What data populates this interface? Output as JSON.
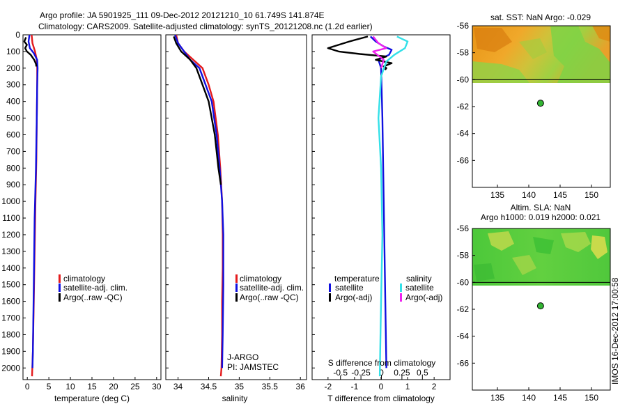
{
  "header": {
    "title_line1": "Argo profile: JA 5901925_111 09-Dec-2012 20121210_10 61.749S 141.874E",
    "title_line2": "Climatology: CARS2009. Satellite-adjusted climatology: synTS_20121208.nc (1.2d earlier)"
  },
  "side_credit": "IMOS 16-Dec-2012 17:00:58",
  "colors": {
    "climatology": "#e41a1c",
    "satellite": "#1010e0",
    "argo": "#000000",
    "satellite_salinity": "#33e0e8",
    "argo_salinity": "#ee22ee"
  },
  "chart_data": [
    {
      "type": "line",
      "name": "temperature profile",
      "xlabel": "temperature (deg C)",
      "ylabel": "",
      "xlim": [
        -1,
        31
      ],
      "ylim": [
        2070,
        0
      ],
      "xticks": [
        0,
        5,
        10,
        15,
        20,
        25,
        30
      ],
      "yticks": [
        0,
        100,
        200,
        300,
        400,
        500,
        600,
        700,
        800,
        900,
        1000,
        1100,
        1200,
        1300,
        1400,
        1500,
        1600,
        1700,
        1800,
        1900,
        2000
      ],
      "legend": [
        "climatology",
        "satellite-adj. clim.",
        "Argo(..raw -QC)"
      ],
      "annotations": [],
      "series": [
        {
          "name": "climatology",
          "color": "#e41a1c",
          "x": [
            1.0,
            1.2,
            1.8,
            2.2,
            2.3,
            2.3,
            2.2,
            2.1,
            1.9,
            1.7,
            1.5,
            1.3,
            1.1
          ],
          "y": [
            0,
            50,
            100,
            150,
            200,
            300,
            500,
            750,
            1000,
            1300,
            1600,
            1900,
            2050
          ]
        },
        {
          "name": "satellite-adj. clim.",
          "color": "#1010e0",
          "x": [
            0.5,
            0.3,
            0.6,
            1.5,
            2.3,
            2.4,
            2.3,
            2.2,
            2.0,
            1.7,
            1.5,
            1.3,
            1.2
          ],
          "y": [
            0,
            40,
            80,
            110,
            150,
            200,
            300,
            500,
            800,
            1100,
            1500,
            1900,
            2000
          ]
        },
        {
          "name": "Argo(..raw -QC)",
          "color": "#000000",
          "x": [
            -0.3,
            -0.7,
            -0.1,
            -0.5,
            -0.1,
            0.8,
            1.6,
            2.0,
            2.1
          ],
          "y": [
            15,
            40,
            60,
            80,
            100,
            120,
            150,
            175,
            190
          ]
        }
      ]
    },
    {
      "type": "line",
      "name": "salinity profile",
      "xlabel": "salinity",
      "ylabel": "",
      "xlim": [
        33.8,
        36.1
      ],
      "ylim": [
        2070,
        0
      ],
      "xticks": [
        34,
        34.5,
        35,
        35.5,
        36
      ],
      "legend": [
        "climatology",
        "satellite-adj. clim.",
        "Argo(..raw -QC)"
      ],
      "annotations": [
        "J-ARGO",
        "PI: JAMSTEC"
      ],
      "series": [
        {
          "name": "climatology",
          "color": "#e41a1c",
          "x": [
            33.97,
            34.0,
            34.1,
            34.25,
            34.4,
            34.5,
            34.58,
            34.65,
            34.69,
            34.72,
            34.73,
            34.73,
            34.72,
            34.72,
            34.71,
            34.7
          ],
          "y": [
            0,
            50,
            100,
            150,
            200,
            300,
            400,
            600,
            800,
            1000,
            1200,
            1400,
            1600,
            1800,
            2000,
            2050
          ]
        },
        {
          "name": "satellite-adj. clim.",
          "color": "#1010e0",
          "x": [
            33.95,
            34.0,
            34.1,
            34.2,
            34.35,
            34.45,
            34.55,
            34.63,
            34.68,
            34.72,
            34.74,
            34.74,
            34.73,
            34.72
          ],
          "y": [
            0,
            50,
            100,
            150,
            200,
            300,
            400,
            600,
            800,
            1000,
            1200,
            1500,
            1800,
            2000
          ]
        },
        {
          "name": "Argo(..raw -QC)",
          "color": "#000000",
          "x": [
            33.93,
            33.97,
            34.05,
            34.2,
            34.3,
            34.4,
            34.5,
            34.6,
            34.66,
            34.7
          ],
          "y": [
            10,
            50,
            100,
            150,
            200,
            300,
            400,
            600,
            800,
            900
          ]
        }
      ]
    },
    {
      "type": "line",
      "name": "difference from climatology",
      "xlabel": "T difference from climatology",
      "xlabel_top": "S difference from climatology",
      "xlim": [
        -2.6,
        2.6
      ],
      "ylim": [
        2070,
        0
      ],
      "xticks": [
        -2,
        -1,
        0,
        1,
        2
      ],
      "xticks_s": [
        -0.5,
        -0.25,
        0,
        0.25,
        0.5
      ],
      "legend_title_t": "temperature",
      "legend_title_s": "salinity",
      "legend_t": [
        "satellite",
        "Argo(-adj)"
      ],
      "legend_s": [
        "satellite",
        "Argo(-adj)"
      ],
      "series": [
        {
          "name": "temperature satellite",
          "color": "#1010e0",
          "x": [
            -0.4,
            -0.2,
            0.1,
            0.4,
            0.3,
            -0.1,
            0.0,
            0.05,
            0.1,
            0.15,
            0.2
          ],
          "y": [
            10,
            40,
            70,
            90,
            120,
            150,
            200,
            500,
            1000,
            1500,
            2000
          ]
        },
        {
          "name": "temperature Argo(-adj)",
          "color": "#000000",
          "x": [
            -0.5,
            -1.2,
            -2.0,
            -1.6,
            -0.8,
            0.2,
            -0.2,
            0.4,
            0.1,
            0.2,
            0.15
          ],
          "y": [
            10,
            40,
            80,
            100,
            115,
            130,
            150,
            170,
            190,
            200,
            210
          ]
        },
        {
          "name": "salinity satellite",
          "color": "#33e0e8",
          "x": [
            0.6,
            1.0,
            0.9,
            0.5,
            0.2,
            0.0,
            -0.1,
            0.0,
            0.05,
            0.0,
            -0.05
          ],
          "y": [
            10,
            40,
            80,
            120,
            160,
            250,
            500,
            800,
            1200,
            1600,
            2050
          ]
        },
        {
          "name": "salinity Argo(-adj)",
          "color": "#ee22ee",
          "x": [
            -0.3,
            -0.1,
            0.2,
            -0.3,
            0.1,
            0.0
          ],
          "y": [
            10,
            50,
            80,
            100,
            150,
            200
          ]
        }
      ]
    },
    {
      "type": "heatmap",
      "name": "sat. SST map",
      "title": "sat. SST: NaN Argo: -0.029",
      "xlim": [
        131,
        153
      ],
      "ylim": [
        -68,
        -56
      ],
      "xticks": [
        135,
        140,
        145,
        150
      ],
      "yticks": [
        -56,
        -58,
        -60,
        -62,
        -64,
        -66
      ],
      "data_top_lat": -60,
      "argo_position": [
        141.874,
        -61.749
      ]
    },
    {
      "type": "heatmap",
      "name": "Altim. SLA map",
      "title_line1": "Altim. SLA: NaN",
      "title_line2": "Argo h1000: 0.019 h2000: 0.021",
      "xlim": [
        131,
        153
      ],
      "ylim": [
        -68,
        -56
      ],
      "xticks": [
        135,
        140,
        145,
        150
      ],
      "yticks": [
        -56,
        -58,
        -60,
        -62,
        -64,
        -66
      ],
      "data_top_lat": -60,
      "argo_position": [
        141.874,
        -61.749
      ]
    }
  ]
}
